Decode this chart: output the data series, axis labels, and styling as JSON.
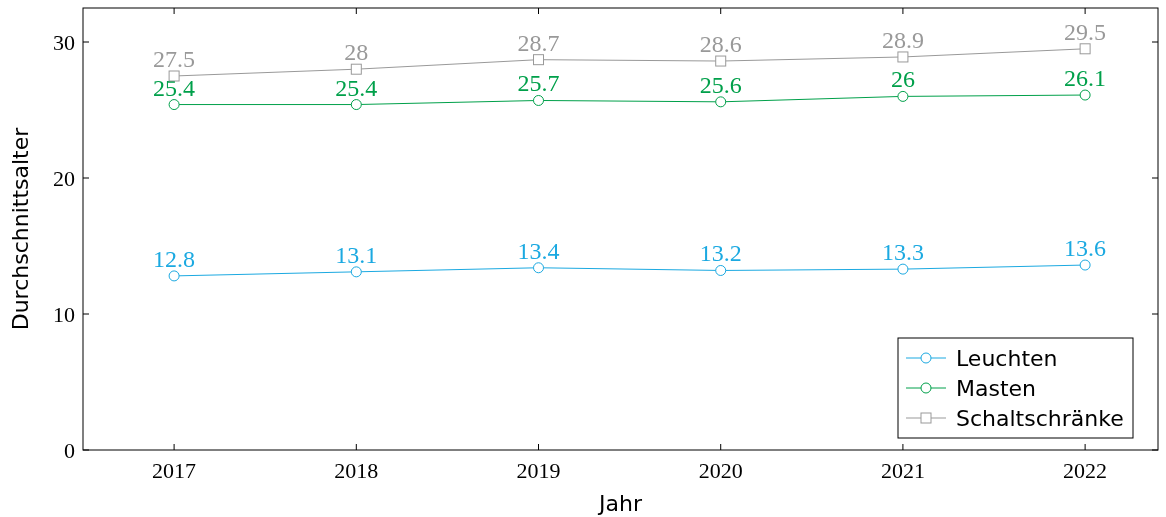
{
  "chart_data": {
    "type": "line",
    "xlabel": "Jahr",
    "ylabel": "Durchschnittsalter",
    "x": [
      2017,
      2018,
      2019,
      2020,
      2021,
      2022
    ],
    "xlim": [
      2016.5,
      2022.4
    ],
    "xticks": [
      2017,
      2018,
      2019,
      2020,
      2021,
      2022
    ],
    "ylim": [
      0,
      32.5
    ],
    "yticks": [
      0,
      10,
      20,
      30
    ],
    "series": [
      {
        "name": "Leuchten",
        "color": "#1ba9e1",
        "marker": "circle",
        "values": [
          12.8,
          13.1,
          13.4,
          13.2,
          13.3,
          13.6
        ]
      },
      {
        "name": "Masten",
        "color": "#00a04a",
        "marker": "circle",
        "values": [
          25.4,
          25.4,
          25.7,
          25.6,
          26,
          26.1
        ]
      },
      {
        "name": "Schaltschränke",
        "color": "#999999",
        "marker": "square",
        "values": [
          27.5,
          28,
          28.7,
          28.6,
          28.9,
          29.5
        ]
      }
    ],
    "data_labels": true,
    "legend": "bottom right",
    "grid": false,
    "line_style": "solid"
  }
}
